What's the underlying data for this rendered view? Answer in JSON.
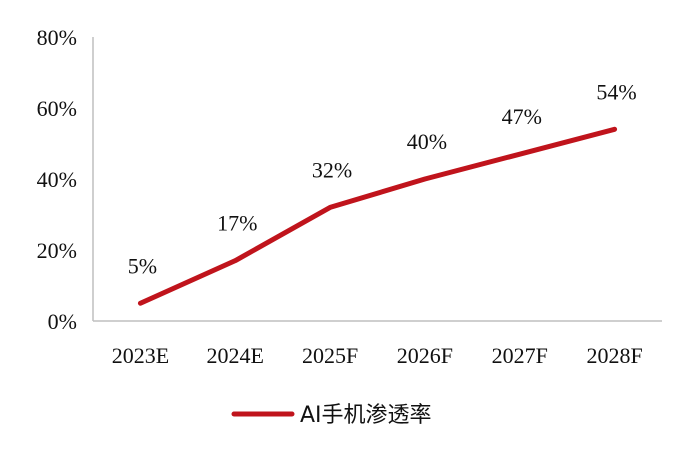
{
  "chart_data": {
    "type": "line",
    "categories": [
      "2023E",
      "2024E",
      "2025F",
      "2026F",
      "2027F",
      "2028F"
    ],
    "series": [
      {
        "name": "AI手机渗透率",
        "values": [
          5,
          17,
          32,
          40,
          47,
          54
        ],
        "labels": [
          "5%",
          "17%",
          "32%",
          "40%",
          "47%",
          "54%"
        ],
        "color": "#C0141C"
      }
    ],
    "ylim": [
      0,
      80
    ],
    "yticks": [
      0,
      20,
      40,
      60,
      80
    ],
    "ytick_labels": [
      "0%",
      "20%",
      "40%",
      "60%",
      "80%"
    ],
    "title": "",
    "xlabel": "",
    "ylabel": "",
    "grid": false,
    "legend": "bottom-center"
  }
}
